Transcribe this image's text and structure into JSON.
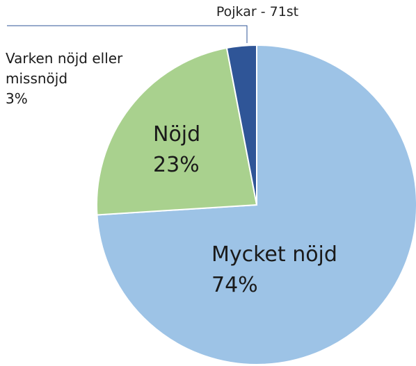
{
  "chart_data": {
    "type": "pie",
    "title": "Pojkar - 71st",
    "categories": [
      "Mycket nöjd",
      "Nöjd",
      "Varken nöjd eller missnöjd"
    ],
    "values": [
      74,
      23,
      3
    ],
    "value_labels": [
      "74%",
      "23%",
      "3%"
    ],
    "colors": [
      "#9dc3e6",
      "#a9d18e",
      "#2f5597"
    ]
  }
}
